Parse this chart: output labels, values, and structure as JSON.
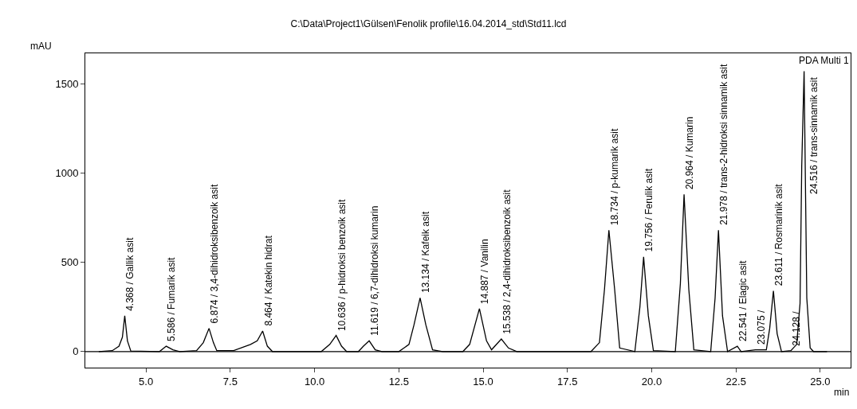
{
  "chart_data": {
    "type": "line",
    "title": "C:\\Data\\Project1\\Gülsen\\Fenolik profile\\16.04.2014_std\\Std11.lcd",
    "xlabel": "min",
    "ylabel": "mAU",
    "xlim": [
      3.2,
      25.9
    ],
    "ylim": [
      -90,
      1670
    ],
    "xticks": [
      {
        "value": 5,
        "label": "5.0"
      },
      {
        "value": 7.5,
        "label": "7.5"
      },
      {
        "value": 10,
        "label": "10.0"
      },
      {
        "value": 12.5,
        "label": "12.5"
      },
      {
        "value": 15,
        "label": "15.0"
      },
      {
        "value": 17.5,
        "label": "17.5"
      },
      {
        "value": 20,
        "label": "20.0"
      },
      {
        "value": 22.5,
        "label": "22.5"
      },
      {
        "value": 25,
        "label": "25.0"
      }
    ],
    "yticks": [
      0,
      500,
      1000,
      1500
    ],
    "ref_lines": [
      {
        "axis": "y",
        "value": 0,
        "color": "#000000"
      }
    ],
    "series": [
      {
        "color": "#000000",
        "x": [
          3.6,
          4.0,
          4.2,
          4.3,
          4.37,
          4.45,
          4.55,
          5.4,
          5.6,
          5.8,
          6.0,
          6.5,
          6.7,
          6.87,
          7.0,
          7.1,
          7.6,
          8.1,
          8.3,
          8.46,
          8.6,
          8.75,
          10.2,
          10.45,
          10.64,
          10.8,
          10.95,
          11.3,
          11.45,
          11.62,
          11.8,
          12.0,
          12.5,
          12.8,
          12.95,
          13.13,
          13.3,
          13.5,
          13.8,
          14.4,
          14.6,
          14.89,
          15.1,
          15.25,
          15.54,
          15.75,
          16.0,
          18.2,
          18.45,
          18.6,
          18.73,
          18.9,
          19.05,
          19.5,
          19.65,
          19.76,
          19.9,
          20.05,
          20.7,
          20.85,
          20.96,
          21.1,
          21.25,
          21.75,
          21.88,
          21.98,
          22.1,
          22.25,
          22.54,
          22.65,
          23.075,
          23.4,
          23.5,
          23.61,
          23.72,
          23.85,
          24.128,
          24.3,
          24.4,
          24.45,
          24.52,
          24.6,
          24.7,
          24.8,
          25.2
        ],
        "values": [
          0,
          5,
          30,
          80,
          200,
          60,
          3,
          0,
          30,
          10,
          0,
          5,
          50,
          130,
          50,
          5,
          5,
          40,
          60,
          115,
          30,
          0,
          0,
          40,
          90,
          30,
          0,
          0,
          30,
          60,
          10,
          0,
          0,
          40,
          150,
          300,
          150,
          10,
          0,
          0,
          40,
          240,
          60,
          10,
          70,
          20,
          0,
          0,
          50,
          350,
          680,
          350,
          20,
          0,
          250,
          530,
          200,
          5,
          0,
          380,
          880,
          350,
          10,
          0,
          300,
          680,
          200,
          0,
          30,
          0,
          10,
          10,
          130,
          340,
          100,
          0,
          5,
          40,
          270,
          1040,
          1570,
          300,
          20,
          0,
          0
        ]
      }
    ],
    "annotations": [
      {
        "text": "4.368 / Gallik asit",
        "x": 4.368,
        "y": 200
      },
      {
        "text": "5.586 / Fumarik asit",
        "x": 5.586,
        "y": 30
      },
      {
        "text": "6.874 / 3,4-dihidroksibenzoik asit",
        "x": 6.874,
        "y": 130
      },
      {
        "text": "8.464 / Katekin hidrat",
        "x": 8.464,
        "y": 115
      },
      {
        "text": "10.636 / p-hidroksi benzoik asit",
        "x": 10.636,
        "y": 90
      },
      {
        "text": "11.619 / 6,7-dihidroksi kumarin",
        "x": 11.619,
        "y": 60
      },
      {
        "text": "13.134 / Kafeik asit",
        "x": 13.134,
        "y": 300
      },
      {
        "text": "14.887 / Vanilin",
        "x": 14.887,
        "y": 240
      },
      {
        "text": "15.538 / 2,4-dihidroksibenzoik asit",
        "x": 15.538,
        "y": 70
      },
      {
        "text": "18.734 / p-kumarik asit",
        "x": 18.734,
        "y": 680
      },
      {
        "text": "19.756 / Ferulik asit",
        "x": 19.756,
        "y": 530
      },
      {
        "text": "20.964 / Kumarin",
        "x": 20.964,
        "y": 880
      },
      {
        "text": "21.978 / trans-2-hidroksi sinnamik asit",
        "x": 21.978,
        "y": 680
      },
      {
        "text": "22.541 / Elagic asit",
        "x": 22.541,
        "y": 30
      },
      {
        "text": "23.075 /",
        "x": 23.075,
        "y": 10
      },
      {
        "text": "23.611 / Rosmarinik asit",
        "x": 23.611,
        "y": 340
      },
      {
        "text": "24.128 /",
        "x": 24.128,
        "y": 5
      },
      {
        "text": "24.516 / trans-sinnamik asit",
        "x": 24.516,
        "y": 1570
      },
      "PDA Multi 1"
    ]
  }
}
